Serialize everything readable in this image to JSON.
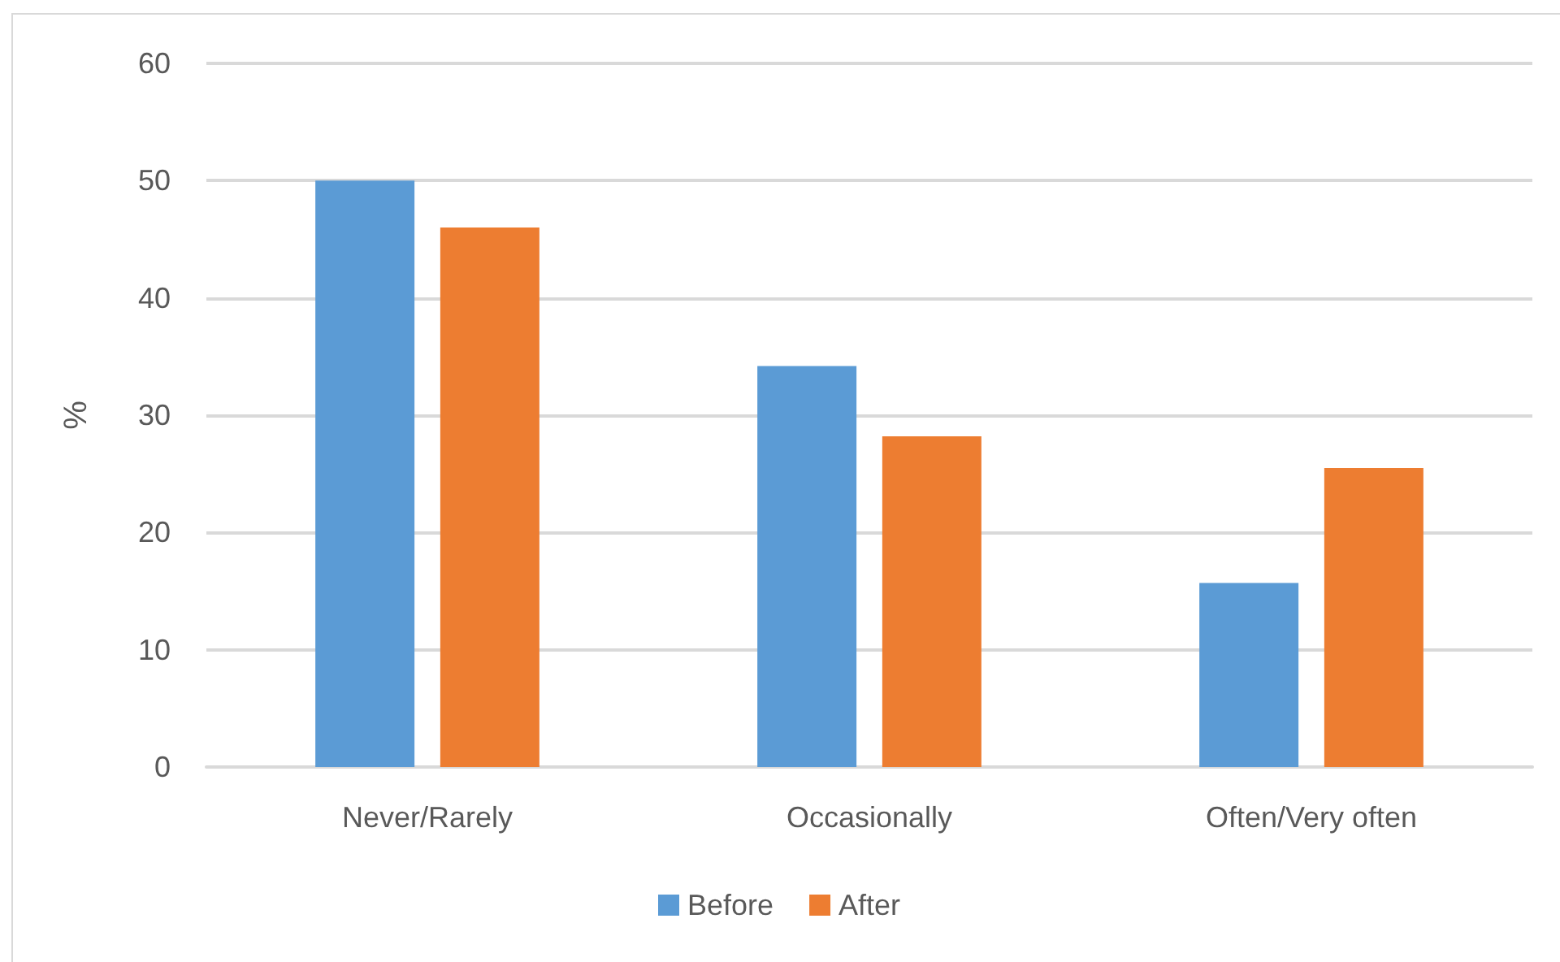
{
  "chart_data": {
    "type": "bar",
    "ylabel": "%",
    "categories": [
      "Never/Rarely",
      "Occasionally",
      "Often/Very often"
    ],
    "series": [
      {
        "name": "Before",
        "color": "#5b9bd5",
        "values": [
          50,
          34.2,
          15.7
        ]
      },
      {
        "name": "After",
        "color": "#ed7d31",
        "values": [
          46,
          28.2,
          25.5
        ]
      }
    ],
    "ylim": [
      0,
      60
    ],
    "yticks": [
      0,
      10,
      20,
      30,
      40,
      50,
      60
    ],
    "grid": "y",
    "legend": "bottom"
  }
}
